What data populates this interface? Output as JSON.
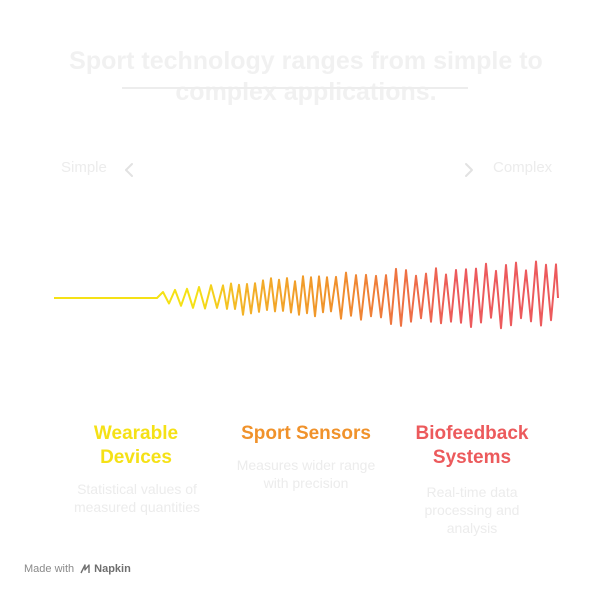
{
  "title": "Sport technology ranges from simple to complex applications.",
  "scale": {
    "left_label": "Simple",
    "right_label": "Complex"
  },
  "categories": [
    {
      "title": "Wearable Devices",
      "description": "Statistical values of measured quantities",
      "color": "#f5e116"
    },
    {
      "title": "Sport Sensors",
      "description": "Measures wider range with precision",
      "color": "#f0922b"
    },
    {
      "title": "Biofeedback Systems",
      "description": "Real-time data processing and analysis",
      "color": "#ec5a5c"
    }
  ],
  "footer": {
    "made_with": "Made with",
    "brand": "Napkin"
  },
  "icons": [
    "chevron-left-icon",
    "chevron-right-icon",
    "napkin-logo-icon"
  ]
}
